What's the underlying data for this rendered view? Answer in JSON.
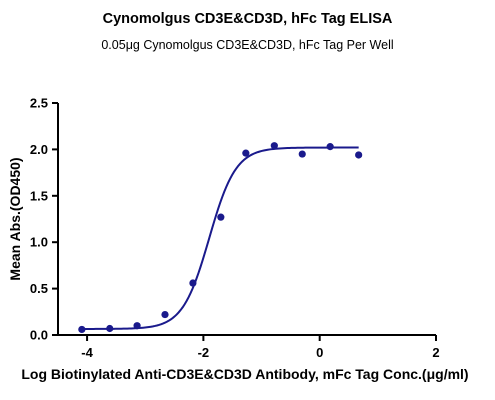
{
  "chart_data": {
    "type": "scatter",
    "title": "Cynomolgus CD3E&CD3D, hFc Tag ELISA",
    "subtitle": "0.05μg Cynomolgus CD3E&CD3D, hFc Tag Per Well",
    "xlabel": "Log Biotinylated Anti-CD3E&CD3D Antibody, mFc Tag Conc.(μg/ml)",
    "ylabel": "Mean Abs.(OD450)",
    "xlim": [
      -4.5,
      2
    ],
    "ylim": [
      0,
      2.5
    ],
    "xticks": [
      -4,
      -2,
      0,
      2
    ],
    "yticks": [
      0.0,
      0.5,
      1.0,
      1.5,
      2.0,
      2.5
    ],
    "xtick_labels": [
      "-4",
      "-2",
      "0",
      "2"
    ],
    "ytick_labels": [
      "0.0",
      "0.5",
      "1.0",
      "1.5",
      "2.0",
      "2.5"
    ],
    "series": [
      {
        "x": [
          -4.09,
          -3.61,
          -3.14,
          -2.66,
          -2.18,
          -1.7,
          -1.27,
          -0.78,
          -0.3,
          0.18,
          0.67
        ],
        "y": [
          0.06,
          0.07,
          0.1,
          0.22,
          0.56,
          1.27,
          1.96,
          2.04,
          1.95,
          2.03,
          1.94
        ],
        "fit": {
          "bottom": 0.065,
          "top": 2.02,
          "logEC50": -1.9,
          "hill": 1.9
        }
      }
    ],
    "colors": {
      "series": "#1a1a8c"
    },
    "grid": false
  }
}
